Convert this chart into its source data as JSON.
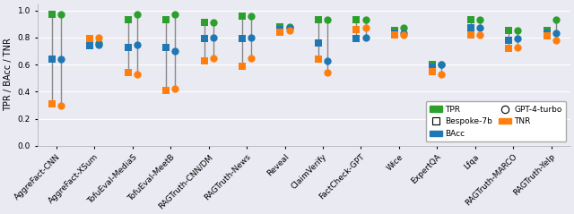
{
  "categories": [
    "AggreFact-CNN",
    "AggreFact-XSum",
    "TofuEval-MediaS",
    "TofuEval-MeetB",
    "RAGTruth-CNN/DM",
    "RAGTruth-News",
    "Reveal",
    "ClaimVerify",
    "FactCheck-GPT",
    "Wice",
    "ExpertQA",
    "Lfqa",
    "RAGTruth-MARCO",
    "RAGTruth-Yelp"
  ],
  "TPR": {
    "bespoke": [
      0.97,
      0.76,
      0.93,
      0.93,
      0.91,
      0.96,
      0.88,
      0.93,
      0.93,
      0.85,
      0.6,
      0.93,
      0.85,
      0.85
    ],
    "gpt4": [
      0.97,
      0.76,
      0.97,
      0.97,
      0.91,
      0.96,
      0.88,
      0.93,
      0.93,
      0.87,
      0.6,
      0.93,
      0.85,
      0.93
    ]
  },
  "BAcc": {
    "bespoke": [
      0.64,
      0.74,
      0.73,
      0.73,
      0.79,
      0.79,
      0.86,
      0.76,
      0.79,
      0.83,
      0.58,
      0.87,
      0.78,
      0.83
    ],
    "gpt4": [
      0.64,
      0.75,
      0.75,
      0.7,
      0.8,
      0.8,
      0.87,
      0.63,
      0.8,
      0.83,
      0.6,
      0.87,
      0.79,
      0.83
    ]
  },
  "TNR": {
    "bespoke": [
      0.31,
      0.79,
      0.54,
      0.41,
      0.63,
      0.59,
      0.84,
      0.64,
      0.86,
      0.82,
      0.55,
      0.82,
      0.72,
      0.81
    ],
    "gpt4": [
      0.3,
      0.8,
      0.53,
      0.42,
      0.65,
      0.65,
      0.85,
      0.54,
      0.87,
      0.82,
      0.53,
      0.82,
      0.73,
      0.78
    ]
  },
  "tpr_color": "#2ca02c",
  "bacc_color": "#1f77b4",
  "tnr_color": "#ff7f0e",
  "background_color": "#eaeaf2",
  "figure_facecolor": "#eaeaf2",
  "ylabel": "TPR / BAcc / TNR",
  "ylim": [
    0.0,
    1.05
  ],
  "yticks": [
    0.0,
    0.2,
    0.4,
    0.6,
    0.8,
    1.0
  ],
  "ytick_labels": [
    "0.0",
    "0.2",
    "0.4",
    "0.6",
    "0.8",
    "1.0"
  ]
}
